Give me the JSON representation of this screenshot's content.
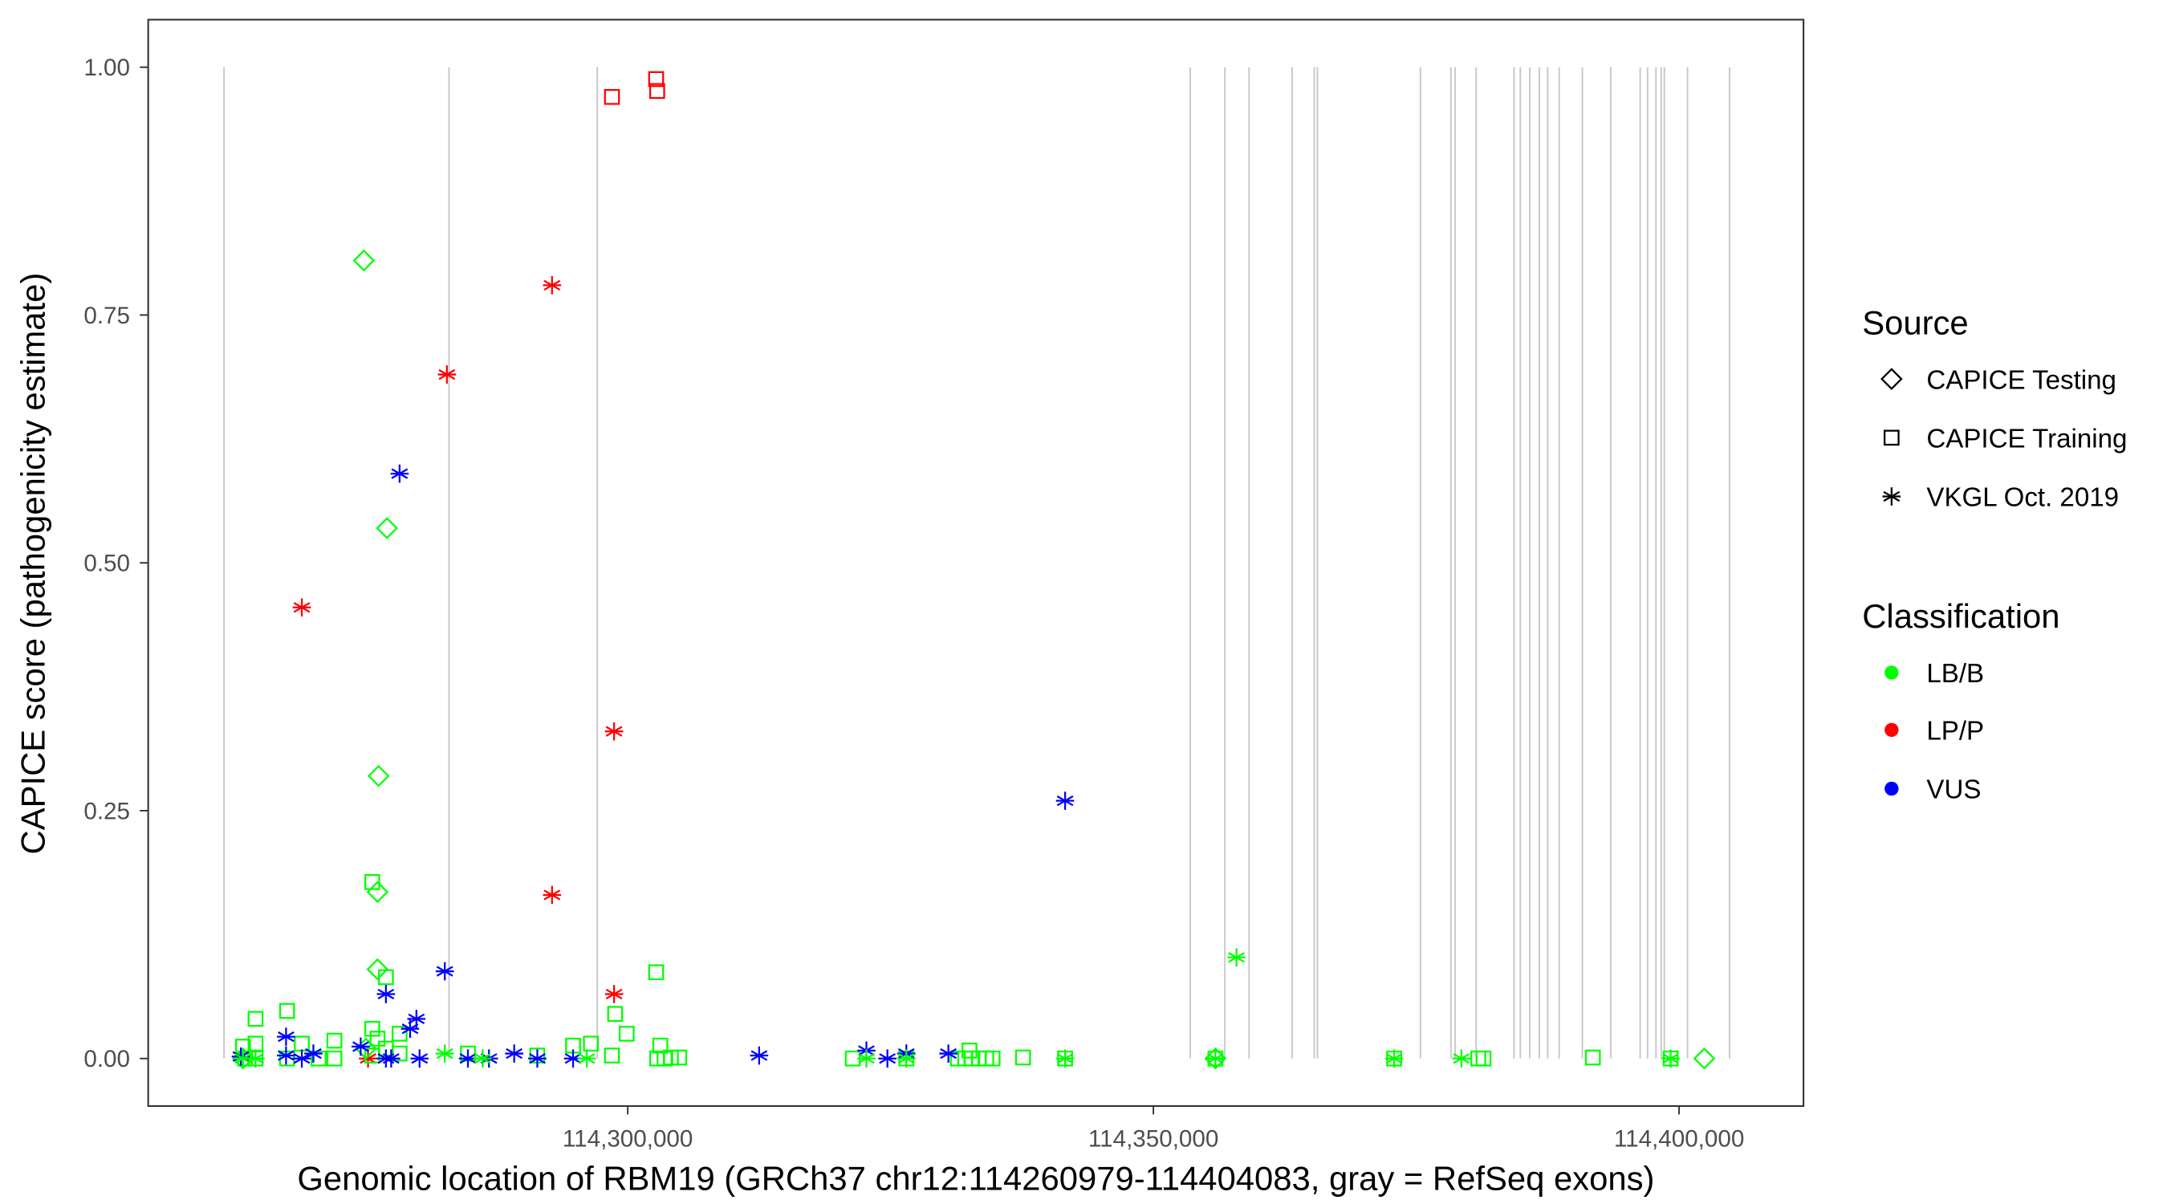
{
  "chart_data": {
    "type": "scatter",
    "xlabel": "Genomic location of RBM19 (GRCh37 chr12:114260979-114404083, gray = RefSeq exons)",
    "ylabel": "CAPICE score (pathogenicity estimate)",
    "xlim": [
      114256000,
      114414000
    ],
    "ylim": [
      -0.045,
      1.045
    ],
    "x_ticks": [
      114300000,
      114350000,
      114400000
    ],
    "x_tick_labels": [
      "114,300,000",
      "114,350,000",
      "114,400,000"
    ],
    "y_ticks": [
      0,
      0.25,
      0.5,
      0.75,
      1.0
    ],
    "y_tick_labels": [
      "0.00",
      "0.25",
      "0.50",
      "0.75",
      "1.00"
    ],
    "grid": false,
    "legend_placement": "right",
    "exons": [
      114261600,
      114283000,
      114297100,
      114353500,
      114356800,
      114359100,
      114363200,
      114365300,
      114365600,
      114375400,
      114378300,
      114378700,
      114380700,
      114384300,
      114384900,
      114385800,
      114386700,
      114387500,
      114388600,
      114390800,
      114393500,
      114396300,
      114397000,
      114397800,
      114398300,
      114398600,
      114400800,
      114404800
    ],
    "exon_color": "#c8c8c8",
    "legend": {
      "source_title": "Source",
      "sources": [
        {
          "label": "CAPICE Testing",
          "shape": "diamond"
        },
        {
          "label": "CAPICE Training",
          "shape": "square"
        },
        {
          "label": "VKGL Oct. 2019",
          "shape": "asterisk"
        }
      ],
      "class_title": "Classification",
      "classes": [
        {
          "label": "LB/B",
          "color": "#00ff00"
        },
        {
          "label": "LP/P",
          "color": "#ff0000"
        },
        {
          "label": "VUS",
          "color": "#0000ff"
        }
      ]
    },
    "point_fields": [
      "position",
      "score",
      "source_index",
      "class_index"
    ],
    "points": [
      [
        114298500,
        0.97,
        1,
        1
      ],
      [
        114302700,
        0.988,
        1,
        1
      ],
      [
        114302800,
        0.976,
        1,
        1
      ],
      [
        114292800,
        0.78,
        2,
        1
      ],
      [
        114282800,
        0.69,
        2,
        1
      ],
      [
        114269000,
        0.455,
        2,
        1
      ],
      [
        114298700,
        0.33,
        2,
        1
      ],
      [
        114292800,
        0.165,
        2,
        1
      ],
      [
        114298700,
        0.065,
        2,
        1
      ],
      [
        114275300,
        0.0,
        2,
        1
      ],
      [
        114274900,
        0.805,
        0,
        0
      ],
      [
        114277100,
        0.535,
        0,
        0
      ],
      [
        114276300,
        0.285,
        0,
        0
      ],
      [
        114276200,
        0.168,
        0,
        0
      ],
      [
        114276200,
        0.09,
        0,
        0
      ],
      [
        114275100,
        0.01,
        0,
        0
      ],
      [
        114402400,
        0.0,
        0,
        0
      ],
      [
        114355900,
        0.0,
        0,
        0
      ],
      [
        114263400,
        0.0,
        0,
        0
      ],
      [
        114275700,
        0.178,
        1,
        0
      ],
      [
        114277000,
        0.082,
        1,
        0
      ],
      [
        114264600,
        0.04,
        1,
        0
      ],
      [
        114267600,
        0.048,
        1,
        0
      ],
      [
        114264600,
        0.015,
        1,
        0
      ],
      [
        114263400,
        0.012,
        1,
        0
      ],
      [
        114272100,
        0.018,
        1,
        0
      ],
      [
        114269000,
        0.015,
        1,
        0
      ],
      [
        114275700,
        0.03,
        1,
        0
      ],
      [
        114278300,
        0.025,
        1,
        0
      ],
      [
        114299900,
        0.025,
        1,
        0
      ],
      [
        114298800,
        0.045,
        1,
        0
      ],
      [
        114302700,
        0.087,
        1,
        0
      ],
      [
        114303100,
        0.013,
        1,
        0
      ],
      [
        114296500,
        0.015,
        1,
        0
      ],
      [
        114294800,
        0.013,
        1,
        0
      ],
      [
        114298500,
        0.003,
        1,
        0
      ],
      [
        114337600,
        0.001,
        1,
        0
      ],
      [
        114391800,
        0.001,
        1,
        0
      ],
      [
        114332500,
        0.008,
        1,
        0
      ],
      [
        114304900,
        0.001,
        1,
        0
      ],
      [
        114304100,
        0.001,
        1,
        0
      ],
      [
        114303500,
        0.0,
        1,
        0
      ],
      [
        114302800,
        0.0,
        1,
        0
      ],
      [
        114284800,
        0.005,
        1,
        0
      ],
      [
        114291400,
        0.003,
        1,
        0
      ],
      [
        114275700,
        0.003,
        1,
        0
      ],
      [
        114263600,
        0.0,
        1,
        0
      ],
      [
        114264600,
        0.0,
        1,
        0
      ],
      [
        114267600,
        0.0,
        1,
        0
      ],
      [
        114272100,
        0.0,
        1,
        0
      ],
      [
        114270600,
        0.0,
        1,
        0
      ],
      [
        114277000,
        0.01,
        1,
        0
      ],
      [
        114278300,
        0.005,
        1,
        0
      ],
      [
        114276200,
        0.02,
        1,
        0
      ],
      [
        114321400,
        0.0,
        1,
        0
      ],
      [
        114331400,
        0.0,
        1,
        0
      ],
      [
        114332100,
        0.0,
        1,
        0
      ],
      [
        114332700,
        0.0,
        1,
        0
      ],
      [
        114333400,
        0.0,
        1,
        0
      ],
      [
        114334100,
        0.0,
        1,
        0
      ],
      [
        114334700,
        0.0,
        1,
        0
      ],
      [
        114380900,
        0.0,
        1,
        0
      ],
      [
        114381400,
        0.0,
        1,
        0
      ],
      [
        114399200,
        0.0,
        1,
        0
      ],
      [
        114355900,
        0.0,
        1,
        0
      ],
      [
        114372900,
        0.0,
        1,
        0
      ],
      [
        114341600,
        0.0,
        1,
        0
      ],
      [
        114326500,
        0.0,
        1,
        0
      ],
      [
        114278300,
        0.59,
        2,
        2
      ],
      [
        114282600,
        0.088,
        2,
        2
      ],
      [
        114277000,
        0.065,
        2,
        2
      ],
      [
        114279900,
        0.04,
        2,
        2
      ],
      [
        114279300,
        0.03,
        2,
        2
      ],
      [
        114267500,
        0.022,
        2,
        2
      ],
      [
        114263200,
        0.002,
        2,
        2
      ],
      [
        114267500,
        0.003,
        2,
        2
      ],
      [
        114269000,
        0.0,
        2,
        2
      ],
      [
        114270100,
        0.005,
        2,
        2
      ],
      [
        114274600,
        0.012,
        2,
        2
      ],
      [
        114277500,
        0.0,
        2,
        2
      ],
      [
        114280200,
        0.0,
        2,
        2
      ],
      [
        114286800,
        0.0,
        2,
        2
      ],
      [
        114289200,
        0.005,
        2,
        2
      ],
      [
        114291400,
        0.0,
        2,
        2
      ],
      [
        114294800,
        0.0,
        2,
        2
      ],
      [
        114312500,
        0.003,
        2,
        2
      ],
      [
        114322700,
        0.008,
        2,
        2
      ],
      [
        114324700,
        0.0,
        2,
        2
      ],
      [
        114326500,
        0.005,
        2,
        2
      ],
      [
        114330500,
        0.005,
        2,
        2
      ],
      [
        114341600,
        0.26,
        2,
        2
      ],
      [
        114277000,
        0.0,
        2,
        2
      ],
      [
        114284800,
        0.0,
        2,
        2
      ],
      [
        114357900,
        0.102,
        2,
        0
      ],
      [
        114379300,
        0.0,
        2,
        0
      ],
      [
        114355900,
        0.0,
        2,
        0
      ],
      [
        114372900,
        0.0,
        2,
        0
      ],
      [
        114341600,
        0.0,
        2,
        0
      ],
      [
        114399200,
        0.0,
        2,
        0
      ],
      [
        114326500,
        0.0,
        2,
        0
      ],
      [
        114296100,
        0.0,
        2,
        0
      ],
      [
        114282600,
        0.005,
        2,
        0
      ],
      [
        114286200,
        0.0,
        2,
        0
      ],
      [
        114322700,
        0.0,
        2,
        0
      ],
      [
        114263400,
        0.0,
        2,
        0
      ],
      [
        114264600,
        0.0,
        2,
        0
      ]
    ]
  }
}
